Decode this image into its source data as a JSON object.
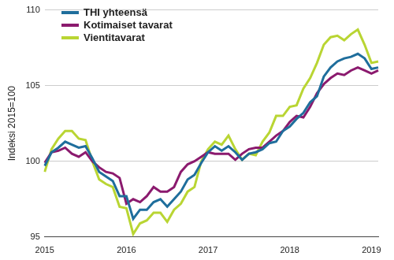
{
  "chart_data": {
    "type": "line",
    "y_label": "Indeksi 2015=100",
    "categories": [
      "2015",
      null,
      null,
      null,
      null,
      null,
      null,
      null,
      null,
      null,
      null,
      null,
      "2016",
      null,
      null,
      null,
      null,
      null,
      null,
      null,
      null,
      null,
      null,
      null,
      "2017",
      null,
      null,
      null,
      null,
      null,
      null,
      null,
      null,
      null,
      null,
      null,
      "2018",
      null,
      null,
      null,
      null,
      null,
      null,
      null,
      null,
      null,
      null,
      null,
      "2019",
      null
    ],
    "series": [
      {
        "name": "THI yhteensä",
        "color": "#1f6e9c",
        "values": [
          99.7,
          100.6,
          100.9,
          101.3,
          101.1,
          100.9,
          101.0,
          100.2,
          99.3,
          99.0,
          98.7,
          97.7,
          97.7,
          96.2,
          96.8,
          96.8,
          97.3,
          97.5,
          97.0,
          97.5,
          98.0,
          98.8,
          99.1,
          99.9,
          100.6,
          101.0,
          100.7,
          101.0,
          100.6,
          100.1,
          100.5,
          100.6,
          100.8,
          101.2,
          101.3,
          102.0,
          102.3,
          102.8,
          103.2,
          103.9,
          104.3,
          105.6,
          106.2,
          106.6,
          106.8,
          106.9,
          107.1,
          106.8,
          106.1,
          106.2
        ]
      },
      {
        "name": "Kotimaiset tavarat",
        "color": "#8b1a6e",
        "values": [
          99.9,
          100.6,
          100.7,
          100.9,
          100.5,
          100.3,
          100.6,
          100.0,
          99.6,
          99.3,
          99.2,
          98.9,
          97.2,
          97.5,
          97.3,
          97.7,
          98.3,
          98.0,
          98.0,
          98.3,
          99.3,
          99.8,
          100.0,
          100.3,
          100.6,
          100.5,
          100.5,
          100.5,
          100.1,
          100.5,
          100.8,
          100.9,
          100.9,
          101.3,
          101.7,
          102.0,
          102.6,
          103.0,
          102.9,
          103.6,
          104.5,
          105.1,
          105.5,
          105.8,
          105.7,
          106.0,
          106.2,
          106.0,
          105.8,
          106.0
        ]
      },
      {
        "name": "Vientitavarat",
        "color": "#b9d533",
        "values": [
          99.3,
          100.8,
          101.5,
          102.0,
          102.0,
          101.5,
          101.4,
          100.0,
          98.8,
          98.5,
          98.3,
          97.0,
          96.9,
          95.2,
          95.9,
          96.1,
          96.6,
          96.6,
          96.0,
          96.8,
          97.2,
          98.0,
          98.3,
          100.0,
          100.8,
          101.3,
          101.1,
          101.7,
          100.8,
          100.1,
          100.5,
          100.4,
          101.3,
          101.9,
          103.0,
          103.0,
          103.6,
          103.7,
          104.8,
          105.5,
          106.5,
          107.7,
          108.2,
          108.3,
          108.0,
          108.4,
          108.7,
          107.7,
          106.5,
          106.6
        ]
      }
    ],
    "ylim": [
      95,
      110
    ],
    "yticks": [
      95,
      100,
      105,
      110
    ],
    "grid": true,
    "legend": "upper left"
  }
}
